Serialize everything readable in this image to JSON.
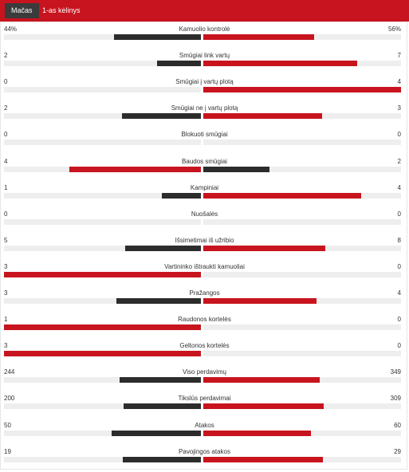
{
  "tabs": [
    {
      "label": "Mačas",
      "active": true
    },
    {
      "label": "1-as kėlinys",
      "active": false
    }
  ],
  "colors": {
    "home_bar": "#2c2c2c",
    "away_bar": "#c8141e",
    "winner_left": "#c8141e",
    "track": "#eeeeee"
  },
  "stats": [
    {
      "name": "Kamuolio kontrolė",
      "home": "44%",
      "away": "56%",
      "home_value": 44,
      "away_value": 56
    },
    {
      "name": "Smūgiai link vartų",
      "home": "2",
      "away": "7",
      "home_value": 2,
      "away_value": 7
    },
    {
      "name": "Smūgiai į vartų plotą",
      "home": "0",
      "away": "4",
      "home_value": 0,
      "away_value": 4
    },
    {
      "name": "Smūgiai ne į vartų plotą",
      "home": "2",
      "away": "3",
      "home_value": 2,
      "away_value": 3
    },
    {
      "name": "Blokuoti smūgiai",
      "home": "0",
      "away": "0",
      "home_value": 0,
      "away_value": 0
    },
    {
      "name": "Baudos smūgiai",
      "home": "4",
      "away": "2",
      "home_value": 4,
      "away_value": 2
    },
    {
      "name": "Kampiniai",
      "home": "1",
      "away": "4",
      "home_value": 1,
      "away_value": 4
    },
    {
      "name": "Nuošalės",
      "home": "0",
      "away": "0",
      "home_value": 0,
      "away_value": 0
    },
    {
      "name": "Išsimetimai iš užribio",
      "home": "5",
      "away": "8",
      "home_value": 5,
      "away_value": 8
    },
    {
      "name": "Vartininko ištraukti kamuoliai",
      "home": "3",
      "away": "0",
      "home_value": 3,
      "away_value": 0
    },
    {
      "name": "Pražangos",
      "home": "3",
      "away": "4",
      "home_value": 3,
      "away_value": 4
    },
    {
      "name": "Raudonos kortelės",
      "home": "1",
      "away": "0",
      "home_value": 1,
      "away_value": 0
    },
    {
      "name": "Geltonos kortelės",
      "home": "3",
      "away": "0",
      "home_value": 3,
      "away_value": 0
    },
    {
      "name": "Viso perdavimų",
      "home": "244",
      "away": "349",
      "home_value": 244,
      "away_value": 349
    },
    {
      "name": "Tikslūs perdavimai",
      "home": "200",
      "away": "309",
      "home_value": 200,
      "away_value": 309
    },
    {
      "name": "Atakos",
      "home": "50",
      "away": "60",
      "home_value": 50,
      "away_value": 60
    },
    {
      "name": "Pavojingos atakos",
      "home": "19",
      "away": "29",
      "home_value": 19,
      "away_value": 29
    }
  ]
}
